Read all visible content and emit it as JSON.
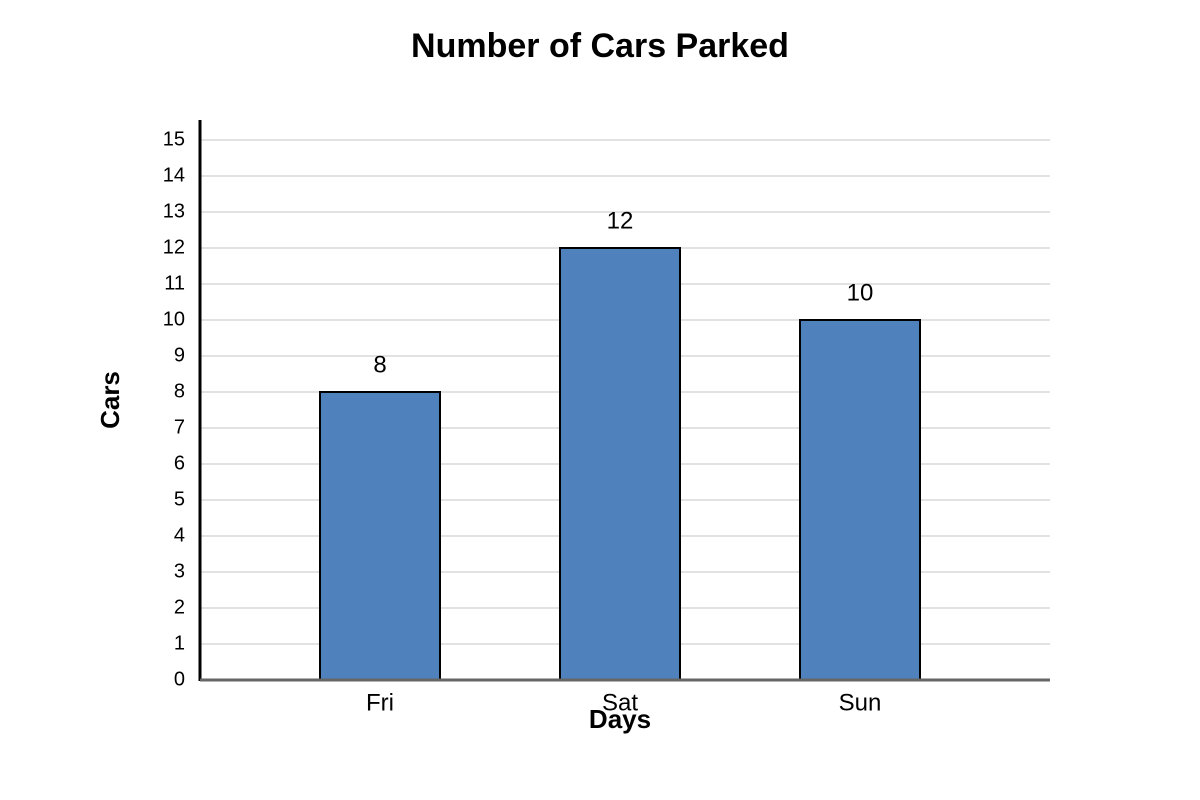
{
  "chart_data": {
    "type": "bar",
    "title": "Number of Cars Parked",
    "x_label": "Days",
    "y_label": "Cars",
    "categories": [
      "Fri",
      "Sat",
      "Sun"
    ],
    "values": [
      8,
      12,
      10
    ],
    "color": "#4f81bd",
    "ylim": [
      0,
      15
    ],
    "yticks": [
      0,
      1,
      2,
      3,
      4,
      5,
      6,
      7,
      8,
      9,
      10,
      11,
      12,
      13,
      14,
      15
    ],
    "grid": true
  }
}
